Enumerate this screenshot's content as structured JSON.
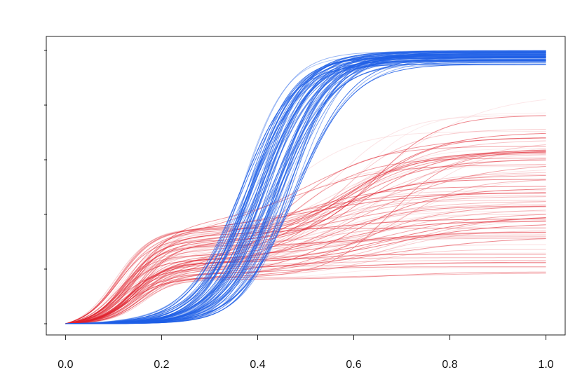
{
  "chart_data": {
    "type": "line",
    "title": "",
    "xlabel": "",
    "ylabel": "",
    "xlim": [
      -0.04,
      1.04
    ],
    "ylim": [
      0,
      1
    ],
    "x_ticks": [
      0.0,
      0.2,
      0.4,
      0.6,
      0.8,
      1.0
    ],
    "x_tick_labels": [
      "0.0",
      "0.2",
      "0.4",
      "0.6",
      "0.8",
      "1.0"
    ],
    "y_ticks_count": 6,
    "y_tick_labels": [],
    "grid": false,
    "legend": "none",
    "colors": {
      "blue": "#1f5fe6",
      "red": "#e0202c"
    },
    "families": {
      "blue": {
        "count": 70,
        "shape": "single logistic rise",
        "midpoint_range": [
          0.36,
          0.48
        ],
        "slope_range": [
          15,
          22
        ],
        "plateau_range": [
          0.94,
          1.0
        ],
        "alpha_range": [
          0.35,
          0.85
        ]
      },
      "red": {
        "count": 90,
        "shape": "two-step rise",
        "step1_midpoint_range": [
          0.1,
          0.17
        ],
        "step1_height_range": [
          0.15,
          0.35
        ],
        "step2_midpoint_range": [
          0.45,
          0.7
        ],
        "step2_height_range": [
          0.0,
          0.5
        ],
        "plateau_range": [
          0.27,
          0.85
        ],
        "alpha_range": [
          0.08,
          0.6
        ]
      }
    }
  }
}
